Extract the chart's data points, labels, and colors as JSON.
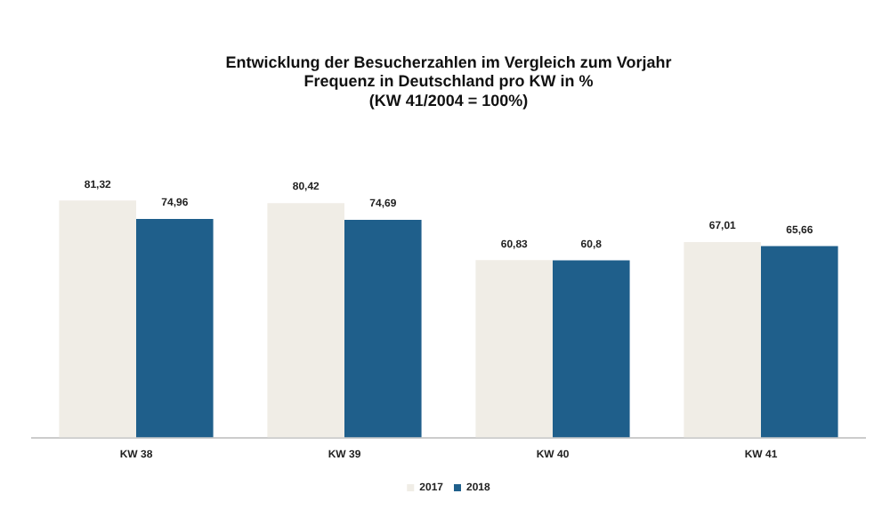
{
  "chart_data": {
    "type": "bar",
    "title": [
      "Entwicklung der Besucherzahlen im Vergleich zum Vorjahr",
      "Frequenz in Deutschland pro KW in %",
      "(KW 41/2004 = 100%)"
    ],
    "categories": [
      "KW 38",
      "KW 39",
      "KW 40",
      "KW 41"
    ],
    "series": [
      {
        "name": "2017",
        "color": "#f0ede6",
        "values": [
          81.32,
          80.42,
          60.83,
          67.01
        ],
        "value_labels": [
          "81,32",
          "80,42",
          "60,83",
          "67,01"
        ]
      },
      {
        "name": "2018",
        "color": "#1f5f8b",
        "values": [
          74.96,
          74.69,
          60.8,
          65.66
        ],
        "value_labels": [
          "74,96",
          "74,69",
          "60,8",
          "65,66"
        ]
      }
    ],
    "tick_labels": "x",
    "grid": false,
    "legend": "bottom"
  }
}
